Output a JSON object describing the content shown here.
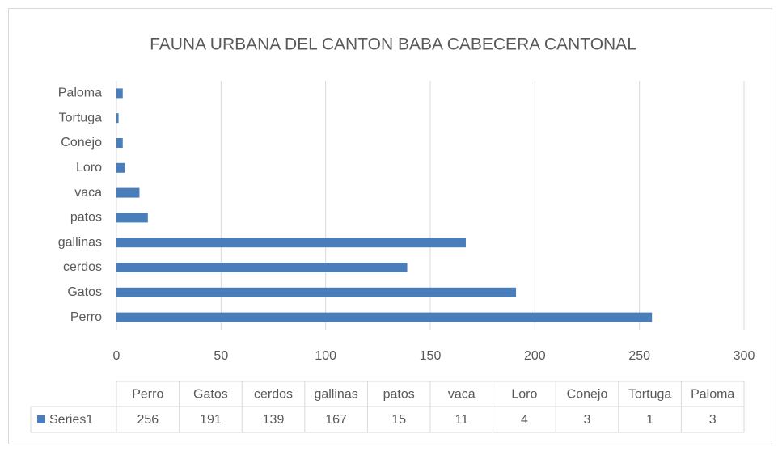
{
  "chart_data": {
    "type": "bar",
    "orientation": "horizontal",
    "title": "FAUNA URBANA DEL CANTON BABA CABECERA CANTONAL",
    "categories": [
      "Perro",
      "Gatos",
      "cerdos",
      "gallinas",
      "patos",
      "vaca",
      "Loro",
      "Conejo",
      "Tortuga",
      "Paloma"
    ],
    "series": [
      {
        "name": "Series1",
        "color": "#4a7ebb",
        "values": [
          256,
          191,
          139,
          167,
          15,
          11,
          4,
          3,
          1,
          3
        ]
      }
    ],
    "xlim": [
      0,
      300
    ],
    "xticks": [
      0,
      50,
      100,
      150,
      200,
      250,
      300
    ],
    "grid": true,
    "data_table": true
  }
}
